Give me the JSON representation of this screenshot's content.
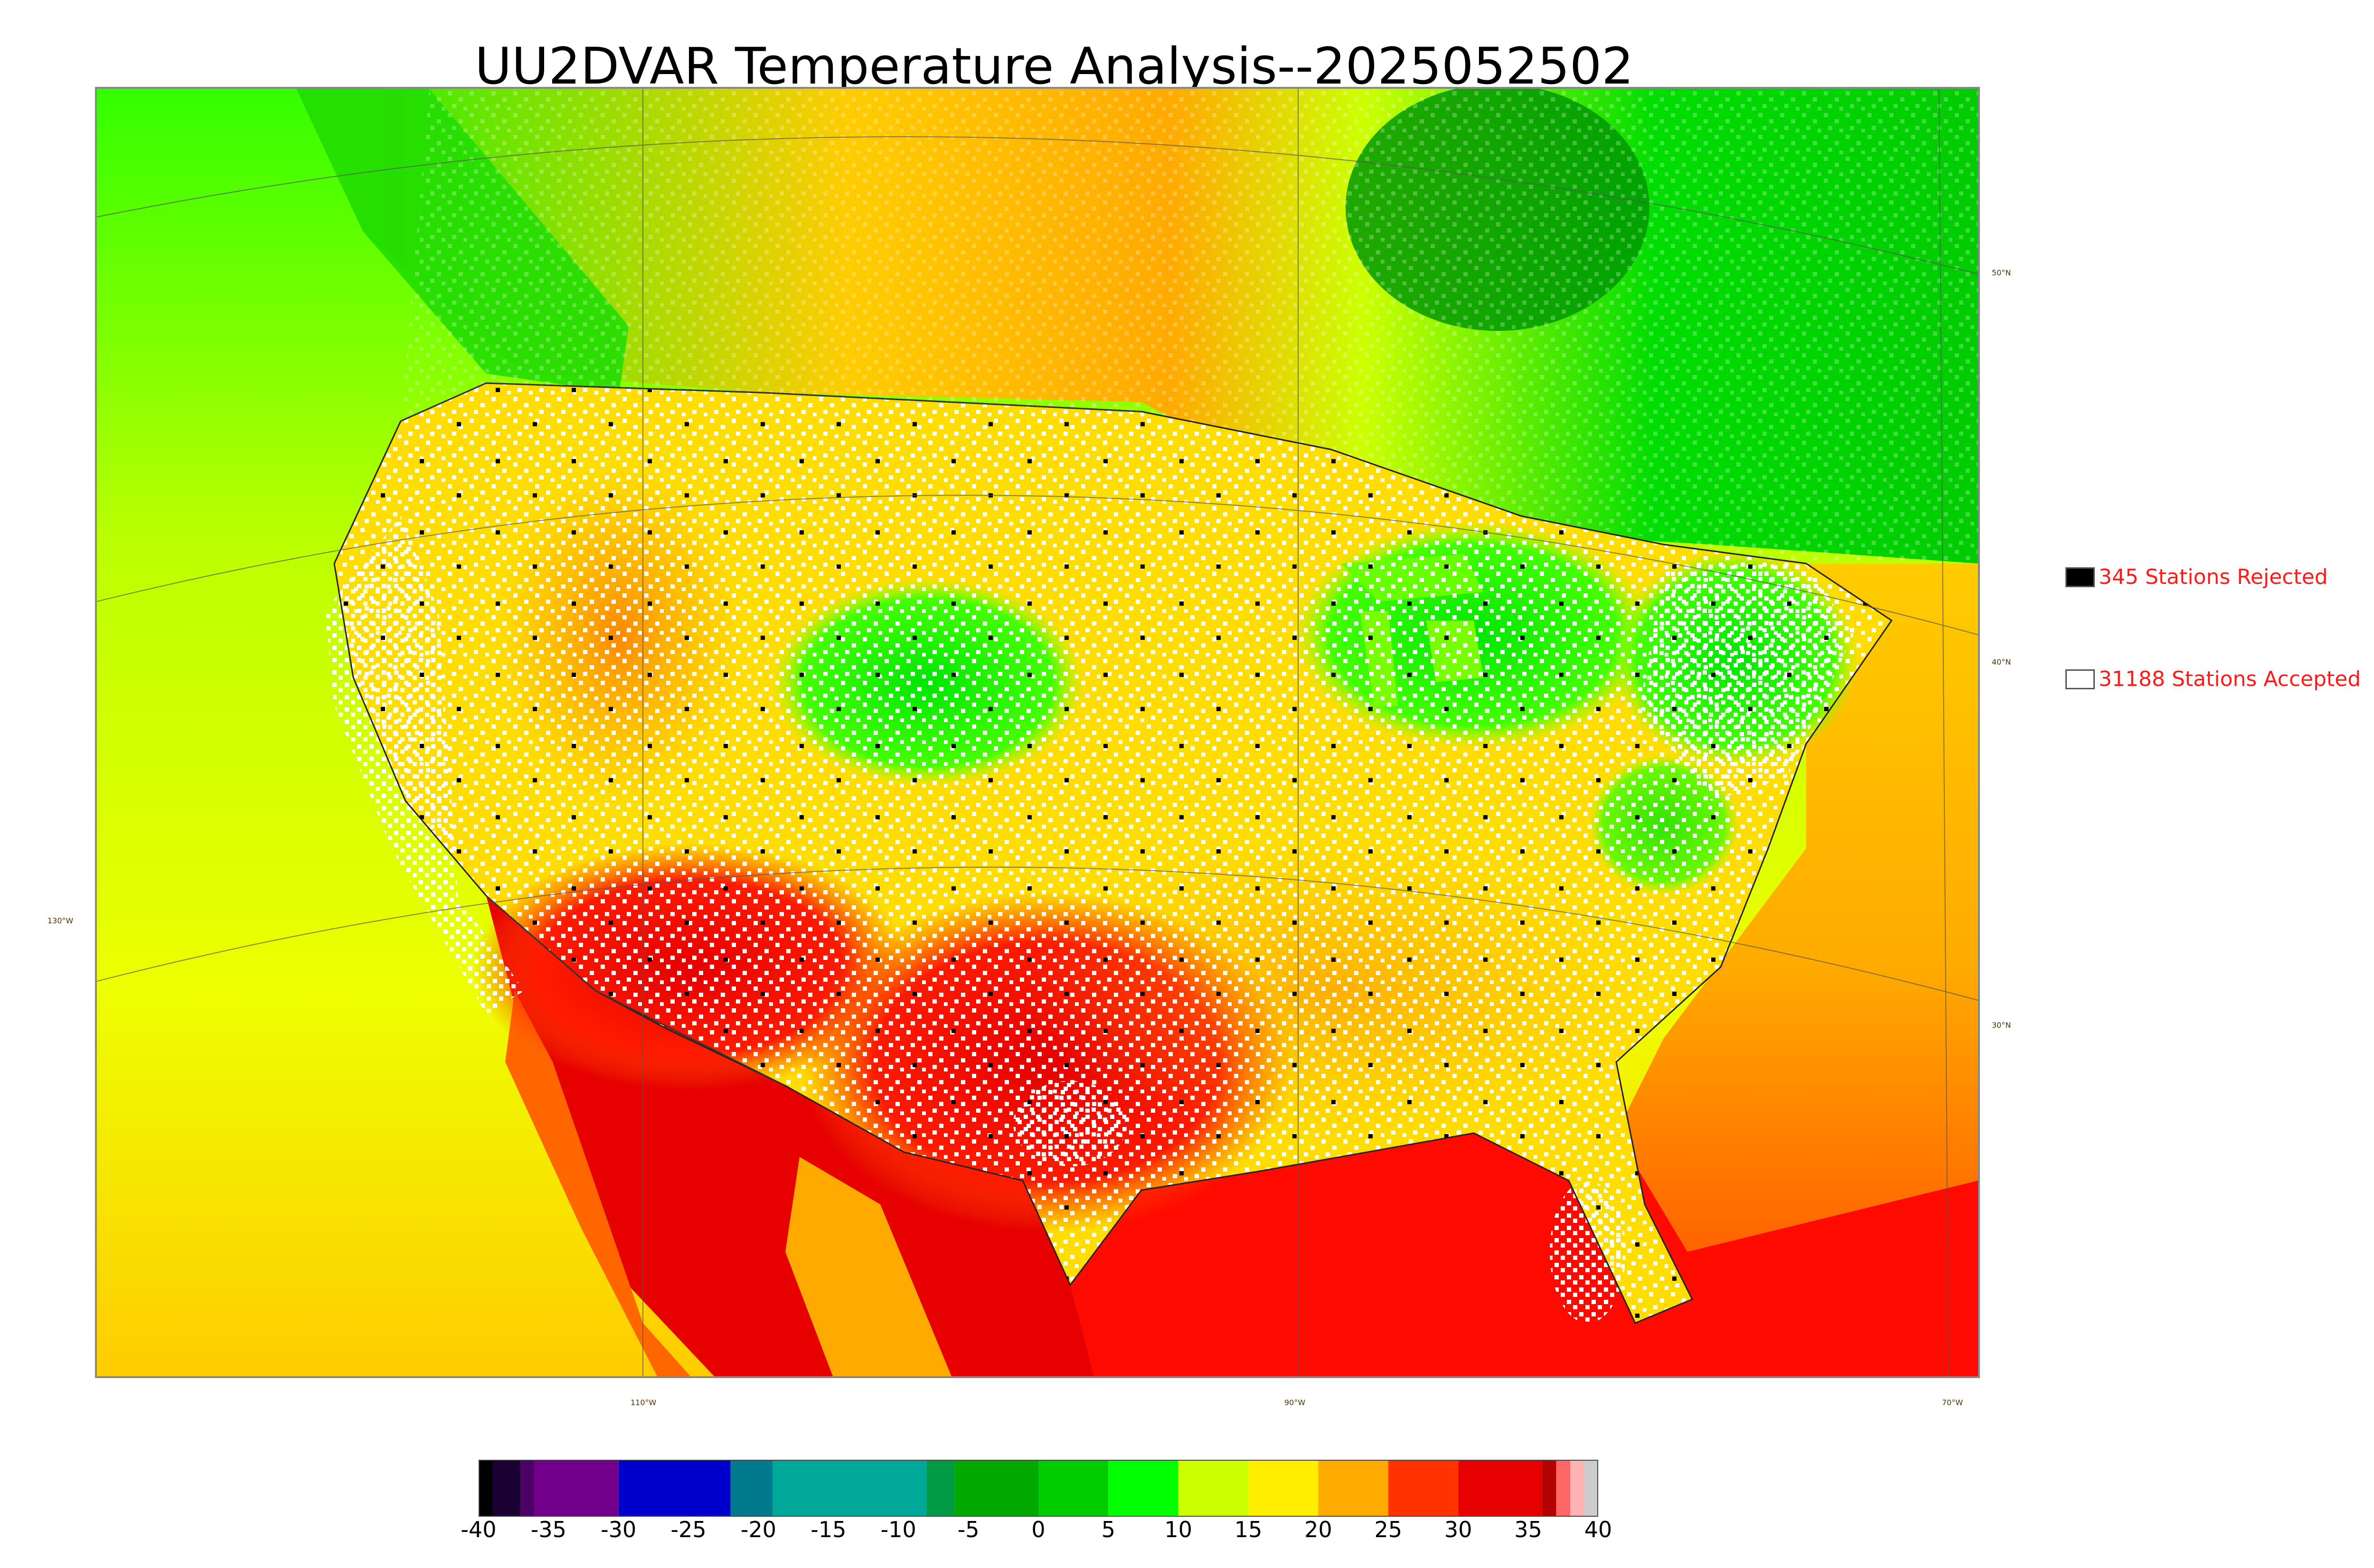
{
  "title": "UU2DVAR Temperature Analysis--2025052502",
  "legend": {
    "rejected": {
      "label": "345 Stations Rejected",
      "swatch_color": "#000000"
    },
    "accepted": {
      "label": "31188 Stations Accepted",
      "swatch_color": "#ffffff"
    }
  },
  "latitude_labels": [
    "50°N",
    "40°N",
    "30°N"
  ],
  "longitude_labels": [
    "130°W",
    "110°W",
    "90°W",
    "70°W"
  ],
  "colorbar": {
    "range": [
      -40,
      40
    ],
    "ticks": [
      "-40",
      "-35",
      "-30",
      "-25",
      "-20",
      "-15",
      "-10",
      "-5",
      "0",
      "5",
      "10",
      "15",
      "20",
      "25",
      "30",
      "35",
      "40"
    ],
    "segments": [
      {
        "from": -40,
        "to": -39,
        "color": "#000000"
      },
      {
        "from": -39,
        "to": -37,
        "color": "#1a0033"
      },
      {
        "from": -37,
        "to": -36,
        "color": "#4d0066"
      },
      {
        "from": -36,
        "to": -30,
        "color": "#73008c"
      },
      {
        "from": -30,
        "to": -22,
        "color": "#0000cc"
      },
      {
        "from": -22,
        "to": -19,
        "color": "#007a8c"
      },
      {
        "from": -19,
        "to": -8,
        "color": "#00a89a"
      },
      {
        "from": -8,
        "to": -6,
        "color": "#009944"
      },
      {
        "from": -6,
        "to": 0,
        "color": "#00a800"
      },
      {
        "from": 0,
        "to": 5,
        "color": "#00cc00"
      },
      {
        "from": 5,
        "to": 10,
        "color": "#00ff00"
      },
      {
        "from": 10,
        "to": 15,
        "color": "#ccff00"
      },
      {
        "from": 15,
        "to": 20,
        "color": "#ffee00"
      },
      {
        "from": 20,
        "to": 25,
        "color": "#ffaa00"
      },
      {
        "from": 25,
        "to": 30,
        "color": "#ff3300"
      },
      {
        "from": 30,
        "to": 36,
        "color": "#e60000"
      },
      {
        "from": 36,
        "to": 37,
        "color": "#b30000"
      },
      {
        "from": 37,
        "to": 38,
        "color": "#ff6666"
      },
      {
        "from": 38,
        "to": 39,
        "color": "#ffb3b3"
      },
      {
        "from": 39,
        "to": 40,
        "color": "#cccccc"
      }
    ]
  },
  "colors": {
    "land_hot": "#e60000",
    "land_warm": "#ffaa00",
    "land_mild": "#ffee00",
    "land_cool": "#ccff00",
    "land_cold": "#00e600",
    "ocean_pacific": "#ccff00",
    "gulf": "#ff0000",
    "atlantic": "#ff9900",
    "canada": "#00cc00",
    "hudson": "#009900",
    "station_accepted": "#ffffff",
    "station_rejected": "#000000",
    "legend_text": "#ff1a1a"
  }
}
